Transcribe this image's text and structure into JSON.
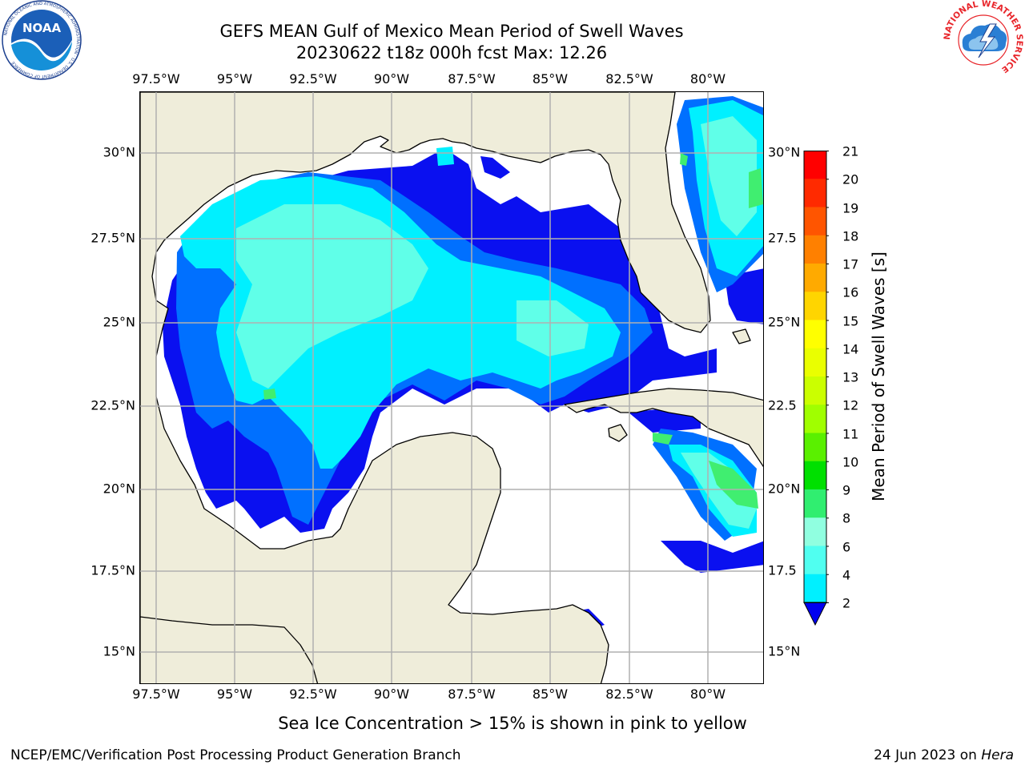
{
  "title": {
    "line1": "GEFS MEAN Gulf of Mexico Mean Period of Swell Waves",
    "line2": "20230622 t18z 000h fcst   Max: 12.26"
  },
  "axes": {
    "lon_labels": [
      "97.5°W",
      "95°W",
      "92.5°W",
      "90°W",
      "87.5°W",
      "85°W",
      "82.5°W",
      "80°W"
    ],
    "lat_labels_left": [
      "30°N",
      "27.5°N",
      "25°N",
      "22.5°N",
      "20°N",
      "17.5°N",
      "15°N"
    ],
    "lat_labels_right": [
      "30°N",
      "27.5",
      "25°N",
      "22.5",
      "20°N",
      "17.5",
      "15°N"
    ]
  },
  "colorbar": {
    "title": "Mean Period of Swell Waves [s]",
    "labels": [
      "21",
      "20",
      "19",
      "18",
      "17",
      "16",
      "15",
      "14",
      "13",
      "12",
      "11",
      "10",
      "9",
      "8",
      "6",
      "4",
      "2"
    ],
    "colors": [
      "#ff0000",
      "#ff2a00",
      "#ff5500",
      "#ff8000",
      "#ffaa00",
      "#ffd500",
      "#ffff00",
      "#eaff00",
      "#cbff00",
      "#a0ff00",
      "#5af000",
      "#00e000",
      "#30ee70",
      "#90ffe0",
      "#50fff0",
      "#00f0ff",
      "#0070ff",
      "#0000f0"
    ]
  },
  "note": "Sea Ice Concentration > 15% is shown in pink to yellow",
  "footer": {
    "left": "NCEP/EMC/Verification Post Processing Product Generation Branch",
    "date": "24 Jun 2023 on ",
    "host": "Hera"
  },
  "logos": {
    "noaa_text": "NOAA",
    "noaa_ring_text": "NATIONAL OCEANIC AND ATMOSPHERIC ADMINISTRATION · U.S. DEPARTMENT OF COMMERCE",
    "nws_ring_text": "NATIONAL WEATHER SERVICE"
  },
  "map_colors": {
    "land": "#efedda",
    "ocean_low": "#ffffff",
    "band_2_4": "#0a10f0",
    "band_4_6": "#0070ff",
    "band_6_8": "#00f0ff",
    "band_8_9": "#60ffe8",
    "band_9_10": "#40ee70",
    "band_10_11": "#00dd00"
  }
}
